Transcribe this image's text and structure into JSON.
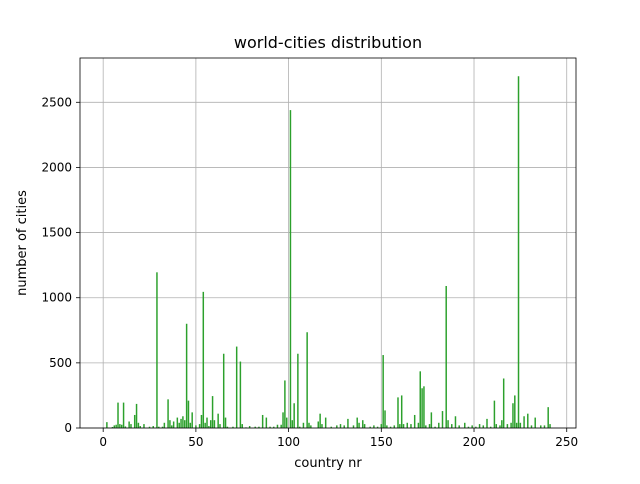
{
  "chart_data": {
    "type": "bar",
    "title": "world-cities distribution",
    "xlabel": "country nr",
    "ylabel": "number of cities",
    "xlim": [
      -12.5,
      255
    ],
    "ylim": [
      0,
      2840
    ],
    "xticks": [
      0,
      50,
      100,
      150,
      200,
      250
    ],
    "yticks": [
      0,
      500,
      1000,
      1500,
      2000,
      2500
    ],
    "grid": true,
    "bar_color": "#2ca02c",
    "bars": [
      {
        "x": 0,
        "y": 4
      },
      {
        "x": 2,
        "y": 45
      },
      {
        "x": 3,
        "y": 3
      },
      {
        "x": 5,
        "y": 8
      },
      {
        "x": 6,
        "y": 20
      },
      {
        "x": 7,
        "y": 25
      },
      {
        "x": 8,
        "y": 195
      },
      {
        "x": 9,
        "y": 30
      },
      {
        "x": 10,
        "y": 25
      },
      {
        "x": 11,
        "y": 195
      },
      {
        "x": 12,
        "y": 12
      },
      {
        "x": 14,
        "y": 50
      },
      {
        "x": 15,
        "y": 30
      },
      {
        "x": 17,
        "y": 100
      },
      {
        "x": 18,
        "y": 185
      },
      {
        "x": 19,
        "y": 40
      },
      {
        "x": 20,
        "y": 15
      },
      {
        "x": 22,
        "y": 30
      },
      {
        "x": 25,
        "y": 10
      },
      {
        "x": 27,
        "y": 15
      },
      {
        "x": 29,
        "y": 1195
      },
      {
        "x": 30,
        "y": 10
      },
      {
        "x": 32,
        "y": 10
      },
      {
        "x": 33,
        "y": 40
      },
      {
        "x": 35,
        "y": 220
      },
      {
        "x": 36,
        "y": 60
      },
      {
        "x": 37,
        "y": 20
      },
      {
        "x": 38,
        "y": 50
      },
      {
        "x": 40,
        "y": 80
      },
      {
        "x": 41,
        "y": 40
      },
      {
        "x": 42,
        "y": 70
      },
      {
        "x": 43,
        "y": 90
      },
      {
        "x": 44,
        "y": 60
      },
      {
        "x": 45,
        "y": 800
      },
      {
        "x": 46,
        "y": 210
      },
      {
        "x": 47,
        "y": 40
      },
      {
        "x": 48,
        "y": 120
      },
      {
        "x": 50,
        "y": 20
      },
      {
        "x": 52,
        "y": 30
      },
      {
        "x": 53,
        "y": 100
      },
      {
        "x": 54,
        "y": 1045
      },
      {
        "x": 55,
        "y": 40
      },
      {
        "x": 56,
        "y": 80
      },
      {
        "x": 57,
        "y": 15
      },
      {
        "x": 58,
        "y": 60
      },
      {
        "x": 59,
        "y": 245
      },
      {
        "x": 60,
        "y": 60
      },
      {
        "x": 62,
        "y": 110
      },
      {
        "x": 63,
        "y": 30
      },
      {
        "x": 65,
        "y": 570
      },
      {
        "x": 66,
        "y": 80
      },
      {
        "x": 67,
        "y": 10
      },
      {
        "x": 70,
        "y": 10
      },
      {
        "x": 72,
        "y": 625
      },
      {
        "x": 74,
        "y": 510
      },
      {
        "x": 75,
        "y": 30
      },
      {
        "x": 77,
        "y": 5
      },
      {
        "x": 79,
        "y": 15
      },
      {
        "x": 82,
        "y": 10
      },
      {
        "x": 84,
        "y": 10
      },
      {
        "x": 86,
        "y": 100
      },
      {
        "x": 88,
        "y": 80
      },
      {
        "x": 90,
        "y": 10
      },
      {
        "x": 92,
        "y": 10
      },
      {
        "x": 94,
        "y": 25
      },
      {
        "x": 96,
        "y": 25
      },
      {
        "x": 97,
        "y": 120
      },
      {
        "x": 98,
        "y": 365
      },
      {
        "x": 99,
        "y": 80
      },
      {
        "x": 101,
        "y": 2440
      },
      {
        "x": 102,
        "y": 60
      },
      {
        "x": 103,
        "y": 190
      },
      {
        "x": 105,
        "y": 570
      },
      {
        "x": 106,
        "y": 10
      },
      {
        "x": 108,
        "y": 40
      },
      {
        "x": 110,
        "y": 735
      },
      {
        "x": 111,
        "y": 40
      },
      {
        "x": 112,
        "y": 20
      },
      {
        "x": 116,
        "y": 50
      },
      {
        "x": 117,
        "y": 110
      },
      {
        "x": 118,
        "y": 30
      },
      {
        "x": 120,
        "y": 80
      },
      {
        "x": 123,
        "y": 10
      },
      {
        "x": 126,
        "y": 20
      },
      {
        "x": 128,
        "y": 30
      },
      {
        "x": 130,
        "y": 20
      },
      {
        "x": 132,
        "y": 70
      },
      {
        "x": 135,
        "y": 20
      },
      {
        "x": 137,
        "y": 80
      },
      {
        "x": 138,
        "y": 40
      },
      {
        "x": 140,
        "y": 60
      },
      {
        "x": 141,
        "y": 30
      },
      {
        "x": 144,
        "y": 10
      },
      {
        "x": 146,
        "y": 20
      },
      {
        "x": 148,
        "y": 10
      },
      {
        "x": 150,
        "y": 30
      },
      {
        "x": 151,
        "y": 560
      },
      {
        "x": 152,
        "y": 135
      },
      {
        "x": 153,
        "y": 20
      },
      {
        "x": 155,
        "y": 10
      },
      {
        "x": 157,
        "y": 20
      },
      {
        "x": 159,
        "y": 235
      },
      {
        "x": 160,
        "y": 30
      },
      {
        "x": 161,
        "y": 250
      },
      {
        "x": 162,
        "y": 30
      },
      {
        "x": 164,
        "y": 40
      },
      {
        "x": 166,
        "y": 30
      },
      {
        "x": 168,
        "y": 100
      },
      {
        "x": 170,
        "y": 40
      },
      {
        "x": 171,
        "y": 435
      },
      {
        "x": 172,
        "y": 305
      },
      {
        "x": 173,
        "y": 320
      },
      {
        "x": 174,
        "y": 20
      },
      {
        "x": 176,
        "y": 30
      },
      {
        "x": 177,
        "y": 120
      },
      {
        "x": 179,
        "y": 10
      },
      {
        "x": 181,
        "y": 40
      },
      {
        "x": 183,
        "y": 130
      },
      {
        "x": 185,
        "y": 1090
      },
      {
        "x": 186,
        "y": 60
      },
      {
        "x": 188,
        "y": 30
      },
      {
        "x": 190,
        "y": 90
      },
      {
        "x": 192,
        "y": 20
      },
      {
        "x": 195,
        "y": 40
      },
      {
        "x": 197,
        "y": 10
      },
      {
        "x": 199,
        "y": 20
      },
      {
        "x": 201,
        "y": 10
      },
      {
        "x": 203,
        "y": 30
      },
      {
        "x": 205,
        "y": 20
      },
      {
        "x": 207,
        "y": 70
      },
      {
        "x": 209,
        "y": 10
      },
      {
        "x": 211,
        "y": 210
      },
      {
        "x": 212,
        "y": 30
      },
      {
        "x": 214,
        "y": 20
      },
      {
        "x": 215,
        "y": 60
      },
      {
        "x": 216,
        "y": 380
      },
      {
        "x": 218,
        "y": 30
      },
      {
        "x": 220,
        "y": 40
      },
      {
        "x": 221,
        "y": 190
      },
      {
        "x": 222,
        "y": 250
      },
      {
        "x": 223,
        "y": 40
      },
      {
        "x": 224,
        "y": 2700
      },
      {
        "x": 225,
        "y": 40
      },
      {
        "x": 227,
        "y": 90
      },
      {
        "x": 229,
        "y": 110
      },
      {
        "x": 231,
        "y": 20
      },
      {
        "x": 233,
        "y": 80
      },
      {
        "x": 236,
        "y": 20
      },
      {
        "x": 238,
        "y": 20
      },
      {
        "x": 240,
        "y": 160
      },
      {
        "x": 241,
        "y": 30
      }
    ]
  }
}
